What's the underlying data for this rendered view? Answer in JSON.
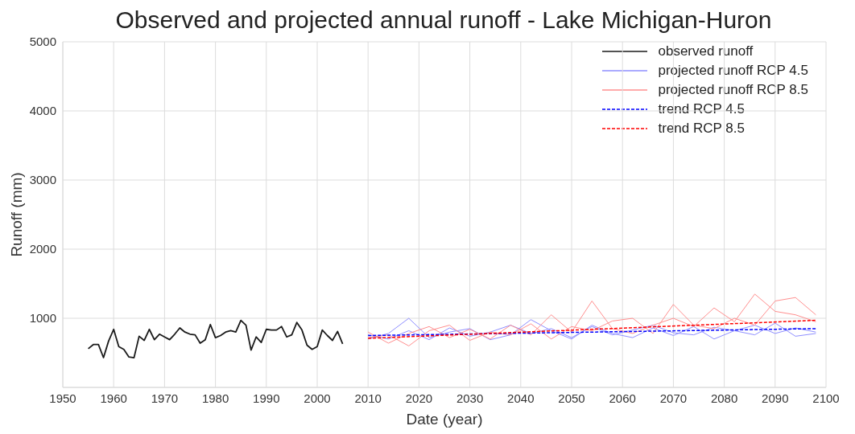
{
  "chart_data": {
    "type": "line",
    "title": "Observed and projected annual runoff - Lake Michigan-Huron",
    "xlabel": "Date (year)",
    "ylabel": "Runoff (mm)",
    "xlim": [
      1950,
      2100
    ],
    "xticks": [
      1950,
      1960,
      1970,
      1980,
      1990,
      2000,
      2010,
      2020,
      2030,
      2040,
      2050,
      2060,
      2070,
      2080,
      2090,
      2100
    ],
    "ylim": [
      0,
      5000
    ],
    "yticks": [
      1000,
      2000,
      3000,
      4000,
      5000
    ],
    "grid": true,
    "legend": "top right",
    "marker": "none",
    "series": [
      {
        "name": "observed runoff",
        "color": "#1a1a1a",
        "line_style": "solid",
        "x": [
          1955,
          1956,
          1957,
          1958,
          1959,
          1960,
          1961,
          1962,
          1963,
          1964,
          1965,
          1966,
          1967,
          1968,
          1969,
          1970,
          1971,
          1972,
          1973,
          1974,
          1975,
          1976,
          1977,
          1978,
          1979,
          1980,
          1981,
          1982,
          1983,
          1984,
          1985,
          1986,
          1987,
          1988,
          1989,
          1990,
          1991,
          1992,
          1993,
          1994,
          1995,
          1996,
          1997,
          1998,
          1999,
          2000,
          2001,
          2002,
          2003,
          2004,
          2005
        ],
        "values": [
          560,
          620,
          620,
          430,
          670,
          840,
          590,
          550,
          440,
          430,
          740,
          680,
          840,
          690,
          770,
          730,
          690,
          770,
          860,
          800,
          770,
          760,
          640,
          690,
          910,
          720,
          750,
          800,
          820,
          800,
          970,
          900,
          540,
          730,
          650,
          840,
          830,
          830,
          880,
          730,
          760,
          940,
          830,
          610,
          550,
          590,
          830,
          750,
          680,
          810,
          630
        ]
      },
      {
        "name": "projected runoff RCP 4.5",
        "color": "#8f8fff",
        "line_style": "solid",
        "x": [
          2010,
          2014,
          2018,
          2022,
          2026,
          2030,
          2034,
          2038,
          2042,
          2046,
          2050,
          2054,
          2058,
          2062,
          2066,
          2070,
          2074,
          2078,
          2082,
          2086,
          2090,
          2094,
          2098
        ],
        "values": [
          760,
          700,
          820,
          690,
          860,
          740,
          800,
          900,
          780,
          850,
          720,
          880,
          760,
          830,
          900,
          790,
          760,
          870,
          820,
          900,
          780,
          860,
          800
        ]
      },
      {
        "color": "#8f8fff",
        "line_style": "solid",
        "x": [
          2010,
          2014,
          2018,
          2022,
          2026,
          2030,
          2034,
          2038,
          2042,
          2046,
          2050,
          2054,
          2058,
          2062,
          2066,
          2070,
          2074,
          2078,
          2082,
          2086,
          2090,
          2094,
          2098
        ],
        "values": [
          700,
          780,
          1000,
          720,
          800,
          850,
          690,
          760,
          980,
          820,
          700,
          900,
          780,
          720,
          860,
          750,
          880,
          700,
          820,
          760,
          930,
          740,
          780
        ]
      },
      {
        "name": "projected runoff RCP 8.5",
        "color": "#ff8f8f",
        "line_style": "solid",
        "x": [
          2010,
          2014,
          2018,
          2022,
          2026,
          2030,
          2034,
          2038,
          2042,
          2046,
          2050,
          2054,
          2058,
          2062,
          2066,
          2070,
          2074,
          2078,
          2082,
          2086,
          2090,
          2094,
          2098
        ],
        "values": [
          800,
          640,
          780,
          880,
          720,
          840,
          700,
          900,
          760,
          1050,
          800,
          1250,
          850,
          780,
          900,
          1000,
          880,
          1150,
          950,
          1350,
          1100,
          1050,
          950
        ]
      },
      {
        "color": "#ff8f8f",
        "line_style": "solid",
        "x": [
          2010,
          2014,
          2018,
          2022,
          2026,
          2030,
          2034,
          2038,
          2042,
          2046,
          2050,
          2054,
          2058,
          2062,
          2066,
          2070,
          2074,
          2078,
          2082,
          2086,
          2090,
          2094,
          2098
        ],
        "values": [
          720,
          760,
          600,
          820,
          900,
          680,
          800,
          760,
          920,
          700,
          880,
          820,
          960,
          1000,
          780,
          1200,
          900,
          850,
          1000,
          900,
          1250,
          1300,
          1050
        ]
      },
      {
        "name": "trend RCP 4.5",
        "color": "#0000ff",
        "line_style": "dashed",
        "x": [
          2010,
          2098
        ],
        "values": [
          750,
          850
        ]
      },
      {
        "name": "trend RCP 8.5",
        "color": "#ff0000",
        "line_style": "dashed",
        "x": [
          2010,
          2098
        ],
        "values": [
          710,
          970
        ]
      }
    ]
  }
}
